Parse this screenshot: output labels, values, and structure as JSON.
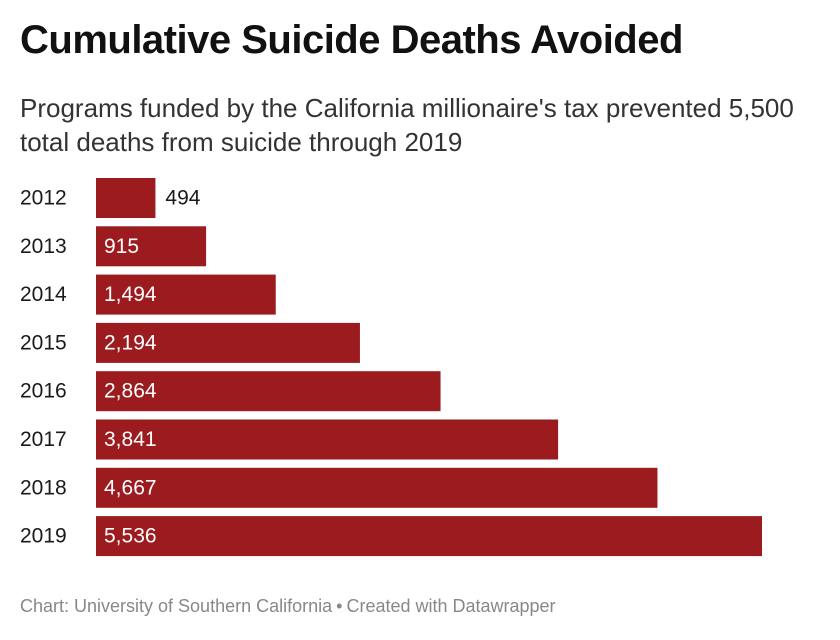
{
  "title": "Cumulative Suicide Deaths Avoided",
  "subtitle": "Programs funded by the California millionaire's tax prevented 5,500 total deaths from suicide through 2019",
  "footer": {
    "source": "Chart: University of Southern California",
    "separator": "•",
    "credit": "Created with Datawrapper"
  },
  "colors": {
    "bar": "#9b1b1f",
    "label_inside": "#ffffff",
    "label_outside": "#1a1a1a",
    "category": "#1a1a1a"
  },
  "chart_data": {
    "type": "bar",
    "orientation": "horizontal",
    "categories": [
      "2012",
      "2013",
      "2014",
      "2015",
      "2016",
      "2017",
      "2018",
      "2019"
    ],
    "values": [
      494,
      915,
      1494,
      2194,
      2864,
      3841,
      4667,
      5536
    ],
    "value_labels": [
      "494",
      "915",
      "1,494",
      "2,194",
      "2,864",
      "3,841",
      "4,667",
      "5,536"
    ],
    "xlim": [
      0,
      5536
    ],
    "grid": false,
    "legend": "none",
    "title": "Cumulative Suicide Deaths Avoided",
    "xlabel": "",
    "ylabel": ""
  }
}
